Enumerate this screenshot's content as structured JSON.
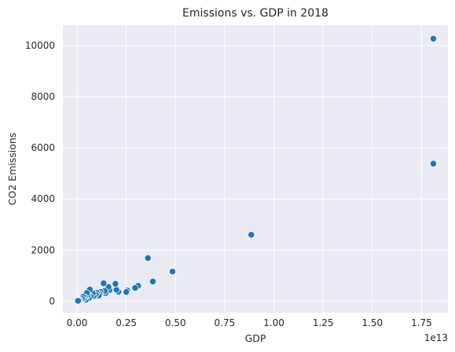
{
  "chart_data": {
    "type": "scatter",
    "title": "Emissions vs. GDP in 2018",
    "xlabel": "GDP",
    "ylabel": "CO2 Emissions",
    "x_offset_label": "1e13",
    "x_scale_factor": 10000000000000.0,
    "xlim": [
      -720000000000.0,
      18840000000000.0
    ],
    "ylim": [
      -450,
      10800
    ],
    "x_ticks": [
      0,
      2500000000000.0,
      5000000000000.0,
      7500000000000.0,
      10000000000000.0,
      12500000000000.0,
      15000000000000.0,
      17500000000000.0
    ],
    "x_tick_labels": [
      "0.00",
      "0.25",
      "0.50",
      "0.75",
      "1.00",
      "1.25",
      "1.50",
      "1.75"
    ],
    "y_ticks": [
      0,
      2000,
      4000,
      6000,
      8000,
      10000
    ],
    "y_tick_labels": [
      "0",
      "2000",
      "4000",
      "6000",
      "8000",
      "10000"
    ],
    "grid": true,
    "colors": {
      "background": "#eaeaf2",
      "grid": "#ffffff",
      "marker": "#1f77b4",
      "marker_edge": "#ffffff",
      "text": "#262626"
    },
    "points": [
      {
        "x": 18100000000000.0,
        "y": 10270
      },
      {
        "x": 18100000000000.0,
        "y": 5380
      },
      {
        "x": 8850000000000.0,
        "y": 2600
      },
      {
        "x": 4850000000000.0,
        "y": 1160
      },
      {
        "x": 3850000000000.0,
        "y": 770
      },
      {
        "x": 3600000000000.0,
        "y": 1690
      },
      {
        "x": 3100000000000.0,
        "y": 600
      },
      {
        "x": 2950000000000.0,
        "y": 520
      },
      {
        "x": 2550000000000.0,
        "y": 420
      },
      {
        "x": 2500000000000.0,
        "y": 360
      },
      {
        "x": 2100000000000.0,
        "y": 370
      },
      {
        "x": 2000000000000.0,
        "y": 450
      },
      {
        "x": 1950000000000.0,
        "y": 680
      },
      {
        "x": 1650000000000.0,
        "y": 440
      },
      {
        "x": 1600000000000.0,
        "y": 560
      },
      {
        "x": 1450000000000.0,
        "y": 320
      },
      {
        "x": 1400000000000.0,
        "y": 400
      },
      {
        "x": 1350000000000.0,
        "y": 700
      },
      {
        "x": 1200000000000.0,
        "y": 360
      },
      {
        "x": 1150000000000.0,
        "y": 280
      },
      {
        "x": 1100000000000.0,
        "y": 220
      },
      {
        "x": 1000000000000.0,
        "y": 330
      },
      {
        "x": 950000000000.0,
        "y": 260
      },
      {
        "x": 850000000000.0,
        "y": 200
      },
      {
        "x": 800000000000.0,
        "y": 310
      },
      {
        "x": 700000000000.0,
        "y": 180
      },
      {
        "x": 650000000000.0,
        "y": 460
      },
      {
        "x": 600000000000.0,
        "y": 120
      },
      {
        "x": 550000000000.0,
        "y": 250
      },
      {
        "x": 500000000000.0,
        "y": 320
      },
      {
        "x": 450000000000.0,
        "y": 60
      },
      {
        "x": 400000000000.0,
        "y": 150
      },
      {
        "x": 350000000000.0,
        "y": 110
      },
      {
        "x": 300000000000.0,
        "y": 170
      },
      {
        "x": 250000000000.0,
        "y": 90
      },
      {
        "x": 150000000000.0,
        "y": 40
      },
      {
        "x": 100000000000.0,
        "y": 30
      },
      {
        "x": 50000000000.0,
        "y": 15
      }
    ]
  }
}
